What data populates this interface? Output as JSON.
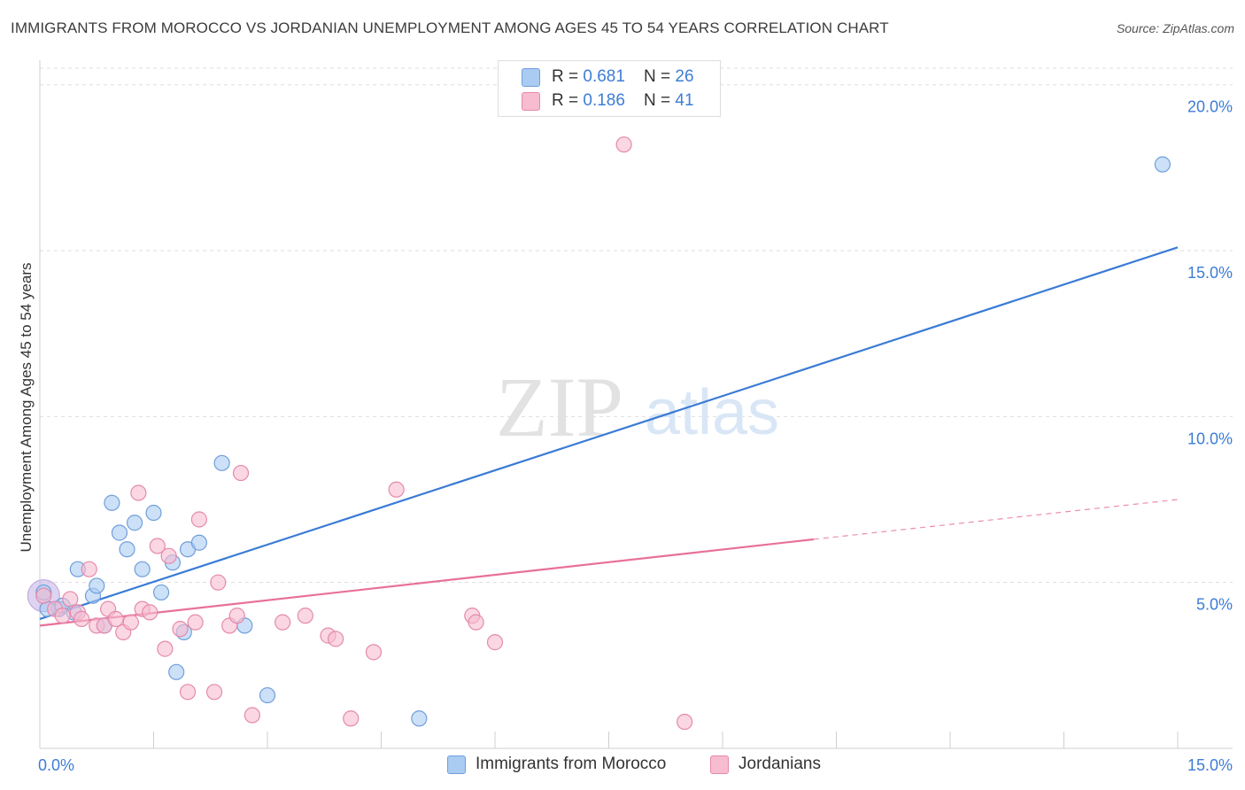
{
  "header": {
    "title": "IMMIGRANTS FROM MOROCCO VS JORDANIAN UNEMPLOYMENT AMONG AGES 45 TO 54 YEARS CORRELATION CHART",
    "source": "Source: ZipAtlas.com"
  },
  "watermark": {
    "zip": "ZIP",
    "atlas": "atlas"
  },
  "legend_top": {
    "morocco": {
      "r_label": "R = ",
      "r_value": "0.681",
      "n_label": "N = ",
      "n_value": "26"
    },
    "jordan": {
      "r_label": "R = ",
      "r_value": "0.186",
      "n_label": "N = ",
      "n_value": "41"
    }
  },
  "legend_bottom": {
    "morocco": "Immigrants from Morocco",
    "jordan": "Jordanians"
  },
  "colors": {
    "morocco_fill": "#aacbf2",
    "morocco_stroke": "#6f9fdc",
    "morocco_line": "#3a7bd5",
    "jordan_fill": "#f7bcd0",
    "jordan_stroke": "#e58aab",
    "jordan_line": "#e8709a",
    "tick_text": "#3d7dd6",
    "grid": "#dddddd"
  },
  "chart_data": {
    "type": "scatter",
    "title": "IMMIGRANTS FROM MOROCCO VS JORDANIAN UNEMPLOYMENT AMONG AGES 45 TO 54 YEARS CORRELATION CHART",
    "xlabel": "",
    "ylabel": "Unemployment Among Ages 45 to 54 years",
    "xlim": [
      0,
      15
    ],
    "ylim": [
      0,
      20.5
    ],
    "x_tick_labels": [
      {
        "value": 0,
        "label": "0.0%"
      },
      {
        "value": 15,
        "label": "15.0%"
      }
    ],
    "y_ticks": [
      {
        "value": 5,
        "label": "5.0%"
      },
      {
        "value": 10,
        "label": "10.0%"
      },
      {
        "value": 15,
        "label": "15.0%"
      },
      {
        "value": 20,
        "label": "20.0%"
      }
    ],
    "x_minor_ticks": [
      1.5,
      3.0,
      4.5,
      6.0,
      7.5,
      9.0,
      10.5,
      12.0,
      13.5,
      15.0
    ],
    "series": [
      {
        "name": "Immigrants from Morocco",
        "color": "#6f9fdc",
        "points": [
          [
            0.05,
            4.7
          ],
          [
            0.25,
            4.2
          ],
          [
            0.3,
            4.3
          ],
          [
            0.45,
            4.1
          ],
          [
            0.5,
            5.4
          ],
          [
            0.7,
            4.6
          ],
          [
            0.75,
            4.9
          ],
          [
            0.85,
            3.7
          ],
          [
            0.95,
            7.4
          ],
          [
            1.05,
            6.5
          ],
          [
            1.15,
            6.0
          ],
          [
            1.25,
            6.8
          ],
          [
            1.35,
            5.4
          ],
          [
            1.5,
            7.1
          ],
          [
            1.6,
            4.7
          ],
          [
            1.75,
            5.6
          ],
          [
            1.8,
            2.3
          ],
          [
            1.9,
            3.5
          ],
          [
            1.95,
            6.0
          ],
          [
            2.1,
            6.2
          ],
          [
            2.4,
            8.6
          ],
          [
            2.7,
            3.7
          ],
          [
            3.0,
            1.6
          ],
          [
            5.0,
            0.9
          ],
          [
            14.8,
            17.6
          ],
          [
            0.1,
            4.2
          ]
        ],
        "trend": [
          [
            0,
            3.9
          ],
          [
            15,
            15.1
          ]
        ],
        "trend_dashed_to": null
      },
      {
        "name": "Jordanians",
        "color": "#e58aab",
        "points": [
          [
            0.05,
            4.6
          ],
          [
            0.2,
            4.2
          ],
          [
            0.3,
            4.0
          ],
          [
            0.4,
            4.5
          ],
          [
            0.5,
            4.1
          ],
          [
            0.55,
            3.9
          ],
          [
            0.65,
            5.4
          ],
          [
            0.75,
            3.7
          ],
          [
            0.85,
            3.7
          ],
          [
            0.9,
            4.2
          ],
          [
            1.0,
            3.9
          ],
          [
            1.1,
            3.5
          ],
          [
            1.2,
            3.8
          ],
          [
            1.3,
            7.7
          ],
          [
            1.35,
            4.2
          ],
          [
            1.45,
            4.1
          ],
          [
            1.55,
            6.1
          ],
          [
            1.65,
            3.0
          ],
          [
            1.7,
            5.8
          ],
          [
            1.85,
            3.6
          ],
          [
            1.95,
            1.7
          ],
          [
            2.05,
            3.8
          ],
          [
            2.1,
            6.9
          ],
          [
            2.3,
            1.7
          ],
          [
            2.35,
            5.0
          ],
          [
            2.5,
            3.7
          ],
          [
            2.6,
            4.0
          ],
          [
            2.65,
            8.3
          ],
          [
            2.8,
            1.0
          ],
          [
            3.2,
            3.8
          ],
          [
            3.5,
            4.0
          ],
          [
            3.8,
            3.4
          ],
          [
            3.9,
            3.3
          ],
          [
            4.1,
            0.9
          ],
          [
            4.4,
            2.9
          ],
          [
            4.7,
            7.8
          ],
          [
            5.7,
            4.0
          ],
          [
            5.75,
            3.8
          ],
          [
            6.0,
            3.2
          ],
          [
            7.7,
            18.2
          ],
          [
            8.5,
            0.8
          ]
        ],
        "trend": [
          [
            0,
            3.7
          ],
          [
            10.2,
            6.3
          ]
        ],
        "trend_dashed_to": [
          15,
          7.5
        ]
      }
    ]
  }
}
